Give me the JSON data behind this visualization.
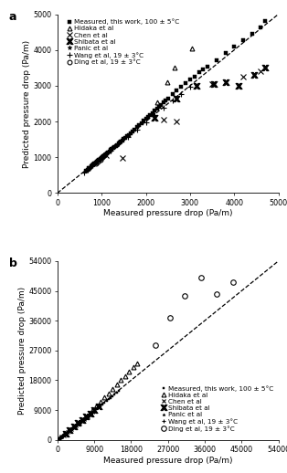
{
  "panel_a": {
    "title": "a",
    "xlim": [
      0,
      5000
    ],
    "ylim": [
      0,
      5000
    ],
    "xticks": [
      0,
      1000,
      2000,
      3000,
      4000,
      5000
    ],
    "yticks": [
      0,
      1000,
      2000,
      3000,
      4000,
      5000
    ],
    "xlabel": "Measured pressure drop (Pa/m)",
    "ylabel": "Predicted pressure drop (Pa/m)",
    "diag_line": [
      0,
      5000
    ],
    "series": [
      {
        "label": "Measured, this work, 100 ± 5°C",
        "marker": "s",
        "color": "black",
        "ms": 2.5,
        "mfc": "black",
        "mew": 0.3,
        "x": [
          650,
          680,
          710,
          730,
          760,
          790,
          810,
          840,
          860,
          880,
          900,
          920,
          940,
          960,
          980,
          1000,
          1020,
          1040,
          1060,
          1080,
          1100,
          1120,
          1150,
          1180,
          1200,
          1230,
          1260,
          1290,
          1320,
          1350,
          1380,
          1410,
          1440,
          1470,
          1500,
          1540,
          1580,
          1620,
          1660,
          1700,
          1750,
          1800,
          1850,
          1900,
          1950,
          2000,
          2050,
          2100,
          2150,
          2200,
          2250,
          2300,
          2350,
          2400,
          2450,
          2500,
          2600,
          2700,
          2800,
          2900,
          3000,
          3100,
          3200,
          3300,
          3400,
          3600,
          3800,
          4000,
          4200,
          4400,
          4600,
          4700
        ],
        "y": [
          620,
          660,
          690,
          710,
          740,
          770,
          790,
          820,
          840,
          860,
          880,
          900,
          920,
          940,
          960,
          980,
          1000,
          1020,
          1040,
          1060,
          1090,
          1110,
          1140,
          1170,
          1200,
          1230,
          1260,
          1290,
          1320,
          1350,
          1380,
          1410,
          1440,
          1470,
          1510,
          1550,
          1590,
          1630,
          1680,
          1730,
          1780,
          1840,
          1900,
          1960,
          2020,
          2080,
          2140,
          2190,
          2240,
          2300,
          2360,
          2400,
          2460,
          2530,
          2590,
          2650,
          2760,
          2880,
          2980,
          3080,
          3180,
          3260,
          3380,
          3450,
          3540,
          3700,
          3920,
          4100,
          4280,
          4460,
          4640,
          4800
        ]
      },
      {
        "label": "Hidaka et al",
        "marker": "^",
        "color": "black",
        "ms": 3.5,
        "mfc": "none",
        "mew": 0.8,
        "x": [
          2250,
          2480,
          2650,
          3050
        ],
        "y": [
          2550,
          3100,
          3500,
          4050
        ]
      },
      {
        "label": "Chen et al",
        "marker": "x",
        "color": "black",
        "ms": 4,
        "mfc": "black",
        "mew": 0.8,
        "x": [
          1100,
          1480,
          2400,
          2700,
          3500,
          4200,
          4600
        ],
        "y": [
          1050,
          990,
          2050,
          2000,
          3050,
          3250,
          3400
        ]
      },
      {
        "label": "Shibata et al",
        "marker": "$\\mathbf{x}$",
        "color": "black",
        "ms": 5,
        "mfc": "black",
        "mew": 0.8,
        "x": [
          2200,
          2700,
          3150,
          3550,
          3800,
          4100,
          4450,
          4700
        ],
        "y": [
          2100,
          2650,
          3000,
          3050,
          3100,
          3000,
          3300,
          3500
        ]
      },
      {
        "label": "Panic et al",
        "marker": "*",
        "color": "black",
        "ms": 3.5,
        "mfc": "black",
        "mew": 0.5,
        "x": [
          700,
          760,
          820,
          880,
          940,
          1000,
          1060,
          1200
        ],
        "y": [
          680,
          740,
          800,
          860,
          920,
          980,
          1050,
          1200
        ]
      },
      {
        "label": "Wang et al, 19 ± 3°C",
        "marker": "+",
        "color": "black",
        "ms": 4,
        "mfc": "black",
        "mew": 0.8,
        "x": [
          600,
          680,
          760,
          840,
          920,
          1000,
          1200,
          1400,
          1600,
          1800,
          2000,
          2200,
          2400,
          2600,
          2800,
          3000
        ],
        "y": [
          580,
          660,
          740,
          820,
          900,
          980,
          1180,
          1380,
          1580,
          1780,
          1980,
          2180,
          2380,
          2580,
          2780,
          2980
        ]
      },
      {
        "label": "Ding et al, 19 ± 3°C",
        "marker": "o",
        "color": "black",
        "ms": 3.5,
        "mfc": "none",
        "mew": 0.8,
        "x": [
          870,
          920,
          970,
          1010,
          1060
        ],
        "y": [
          840,
          890,
          940,
          1000,
          1060
        ]
      }
    ]
  },
  "panel_b": {
    "title": "b",
    "xlim": [
      0,
      54000
    ],
    "ylim": [
      0,
      54000
    ],
    "xticks": [
      0,
      9000,
      18000,
      27000,
      36000,
      45000,
      54000
    ],
    "yticks": [
      0,
      9000,
      18000,
      27000,
      36000,
      45000,
      54000
    ],
    "xlabel": "Measured pressure drop (Pa/m)",
    "ylabel": "Predicted pressure drop (Pa/m)",
    "diag_line": [
      0,
      54000
    ],
    "series": [
      {
        "label": "Measured, this work, 100 ± 5°C",
        "marker": "s",
        "color": "black",
        "ms": 2.0,
        "mfc": "black",
        "mew": 0.3,
        "x": [
          500,
          600,
          700,
          800,
          900,
          1000,
          1100,
          1200,
          1300,
          1400,
          1500,
          1600,
          1700,
          1800,
          1900,
          2000,
          2200,
          2500,
          2800,
          3200,
          3600,
          4000,
          4500,
          5000,
          5500,
          6000,
          6500,
          7000,
          7500,
          8000,
          8500,
          9000,
          9500,
          10000,
          10500,
          11000,
          11500,
          12000,
          12500,
          13000,
          13500,
          14000,
          14500,
          15000
        ],
        "y": [
          480,
          570,
          660,
          760,
          860,
          960,
          1050,
          1150,
          1250,
          1340,
          1440,
          1540,
          1640,
          1740,
          1840,
          1940,
          2150,
          2430,
          2730,
          3100,
          3490,
          3880,
          4360,
          4850,
          5340,
          5830,
          6320,
          6810,
          7300,
          7800,
          8290,
          8780,
          9270,
          9760,
          10250,
          10740,
          11230,
          11720,
          12210,
          12700,
          13200,
          13700,
          14190,
          14680
        ]
      },
      {
        "label": "Hidaka et al",
        "marker": "^",
        "color": "black",
        "ms": 3.5,
        "mfc": "none",
        "mew": 0.8,
        "x": [
          8500,
          9500,
          10500,
          11500,
          12500,
          13500,
          14500,
          15500,
          16500,
          17500,
          18500,
          19500
        ],
        "y": [
          9000,
          10200,
          11500,
          12800,
          14100,
          15400,
          16700,
          18000,
          19300,
          20600,
          21900,
          23200
        ]
      },
      {
        "label": "Chen et al",
        "marker": "x",
        "color": "black",
        "ms": 3.5,
        "mfc": "black",
        "mew": 0.8,
        "x": [
          1000,
          1500,
          2000,
          2500,
          3000,
          3500,
          4000,
          4500,
          5000,
          5500,
          6000,
          6500,
          7000,
          7500,
          8000
        ],
        "y": [
          950,
          1430,
          1920,
          2400,
          2880,
          3360,
          3840,
          4320,
          4800,
          5280,
          5760,
          6240,
          6720,
          7200,
          7680
        ]
      },
      {
        "label": "Shibata et al",
        "marker": "$\\mathbf{x}$",
        "color": "black",
        "ms": 5,
        "mfc": "black",
        "mew": 0.8,
        "x": [
          2000,
          3000,
          4000,
          5000,
          6000,
          7000,
          8000,
          9000,
          10000
        ],
        "y": [
          1950,
          2950,
          3950,
          5050,
          6050,
          7050,
          8050,
          9050,
          10050
        ]
      },
      {
        "label": "Panic et al",
        "marker": "*",
        "color": "black",
        "ms": 2.5,
        "mfc": "black",
        "mew": 0.3,
        "x": [
          500,
          600,
          700,
          800,
          900,
          1000,
          1200,
          1400,
          1600,
          1800,
          2000,
          2500,
          3000,
          3500,
          4000,
          4500,
          5000,
          5500,
          6000,
          6500,
          7000
        ],
        "y": [
          480,
          575,
          670,
          765,
          860,
          955,
          1145,
          1335,
          1525,
          1715,
          1905,
          2380,
          2855,
          3330,
          3805,
          4280,
          4755,
          5230,
          5705,
          6180,
          6655
        ]
      },
      {
        "label": "Wang et al, 19 ± 3°C",
        "marker": "+",
        "color": "black",
        "ms": 3.5,
        "mfc": "black",
        "mew": 0.8,
        "x": [
          500,
          700,
          900,
          1200,
          1600,
          2000,
          2500,
          3000,
          3500,
          4000,
          4500,
          5000,
          5500,
          6000,
          6500,
          7000,
          7500,
          8000,
          8500,
          9000
        ],
        "y": [
          480,
          670,
          860,
          1145,
          1525,
          1905,
          2380,
          2855,
          3330,
          3805,
          4280,
          4755,
          5230,
          5705,
          6180,
          6655,
          7130,
          7605,
          8080,
          8555
        ]
      },
      {
        "label": "Ding et al, 19 ± 3°C",
        "marker": "o",
        "color": "black",
        "ms": 4,
        "mfc": "none",
        "mew": 0.8,
        "x": [
          24000,
          27500,
          31000,
          35000,
          39000,
          43000
        ],
        "y": [
          28500,
          37000,
          43500,
          49000,
          44000,
          47500
        ]
      }
    ]
  },
  "legend_fontsize": 5.2,
  "label_fontsize": 6.5,
  "tick_fontsize": 5.8,
  "title_fontsize": 9
}
